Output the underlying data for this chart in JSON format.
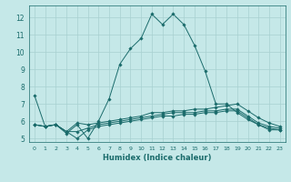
{
  "xlabel": "Humidex (Indice chaleur)",
  "xlim": [
    -0.5,
    23.5
  ],
  "ylim": [
    4.8,
    12.7
  ],
  "yticks": [
    5,
    6,
    7,
    8,
    9,
    10,
    11,
    12
  ],
  "xticks": [
    0,
    1,
    2,
    3,
    4,
    5,
    6,
    7,
    8,
    9,
    10,
    11,
    12,
    13,
    14,
    15,
    16,
    17,
    18,
    19,
    20,
    21,
    22,
    23
  ],
  "background_color": "#c5e8e8",
  "grid_color": "#a8d0d0",
  "line_color": "#1a6b6b",
  "series": [
    {
      "x": [
        0,
        1,
        2,
        3,
        4,
        5,
        6,
        7,
        8,
        9,
        10,
        11,
        12,
        13,
        14,
        15,
        16,
        17,
        18,
        19,
        20,
        21,
        22,
        23
      ],
      "y": [
        7.5,
        5.7,
        5.8,
        5.3,
        5.8,
        5.0,
        6.0,
        7.3,
        9.3,
        10.2,
        10.8,
        12.2,
        11.6,
        12.2,
        11.6,
        10.4,
        8.9,
        7.0,
        7.0,
        6.5,
        6.1,
        5.8,
        5.5,
        5.5
      ]
    },
    {
      "x": [
        0,
        1,
        2,
        3,
        4,
        5,
        6,
        7,
        8,
        9,
        10,
        11,
        12,
        13,
        14,
        15,
        16,
        17,
        18,
        19,
        20,
        21,
        22,
        23
      ],
      "y": [
        5.8,
        5.7,
        5.8,
        5.4,
        5.9,
        5.8,
        5.9,
        6.0,
        6.1,
        6.2,
        6.3,
        6.5,
        6.5,
        6.6,
        6.6,
        6.7,
        6.7,
        6.8,
        6.9,
        7.0,
        6.6,
        6.2,
        5.9,
        5.7
      ]
    },
    {
      "x": [
        0,
        1,
        2,
        3,
        4,
        5,
        6,
        7,
        8,
        9,
        10,
        11,
        12,
        13,
        14,
        15,
        16,
        17,
        18,
        19,
        20,
        21,
        22,
        23
      ],
      "y": [
        5.8,
        5.7,
        5.8,
        5.4,
        5.4,
        5.6,
        5.8,
        5.9,
        6.0,
        6.1,
        6.2,
        6.3,
        6.4,
        6.5,
        6.5,
        6.5,
        6.6,
        6.6,
        6.7,
        6.7,
        6.3,
        5.9,
        5.7,
        5.6
      ]
    },
    {
      "x": [
        0,
        1,
        2,
        3,
        4,
        5,
        6,
        7,
        8,
        9,
        10,
        11,
        12,
        13,
        14,
        15,
        16,
        17,
        18,
        19,
        20,
        21,
        22,
        23
      ],
      "y": [
        5.8,
        5.7,
        5.8,
        5.4,
        5.0,
        5.5,
        5.7,
        5.8,
        5.9,
        6.0,
        6.1,
        6.2,
        6.3,
        6.3,
        6.4,
        6.4,
        6.5,
        6.5,
        6.6,
        6.6,
        6.2,
        5.8,
        5.6,
        5.5
      ]
    }
  ]
}
